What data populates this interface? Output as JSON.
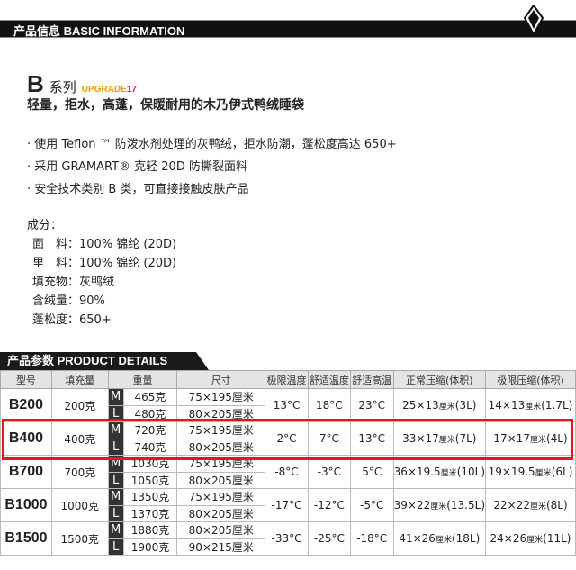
{
  "header": {
    "title": "产品信息  BASIC INFORMATION",
    "logo": "diamond-logo"
  },
  "series": {
    "letter": "B",
    "name": "系列",
    "upgrade": "UPGRADE",
    "upgrade_num": "17",
    "subtitle": "轻量，拒水，高蓬，保暖耐用的木乃伊式鸭绒睡袋"
  },
  "bullets": [
    "·  使用 Teflon ™ 防泼水剂处理的灰鸭绒，拒水防潮，蓬松度高达 650+",
    "·  采用 GRAMART® 克轻 20D 防撕裂面料",
    "·  安全技术类别 B 类，可直接接触皮肤产品"
  ],
  "composition": {
    "title": "成分：",
    "items": [
      "面　料：100% 锦纶 (20D)",
      "里　料：100% 锦纶 (20D)",
      "填充物：灰鸭绒",
      "含绒量：90%",
      "蓬松度：650+"
    ]
  },
  "details": {
    "title": "产品参数  PRODUCT DETAILS",
    "headers": [
      "型号",
      "填充量",
      "重量",
      "尺寸",
      "极限温度",
      "舒适温度",
      "舒适高温",
      "正常压缩(体积)",
      "极限压缩(体积)"
    ],
    "rows": [
      {
        "model": "B200",
        "fill": "200克",
        "variants": [
          {
            "size": "M",
            "weight": "465克",
            "dims": "75×195厘米"
          },
          {
            "size": "L",
            "weight": "480克",
            "dims": "80×205厘米"
          }
        ],
        "extreme": "13°C",
        "comfort": "18°C",
        "high": "23°C",
        "normal": "25×13",
        "normal_unit": "厘米",
        "normal_vol": "(3L)",
        "ext": "14×13",
        "ext_unit": "厘米",
        "ext_vol": "(1.7L)"
      },
      {
        "model": "B400",
        "fill": "400克",
        "variants": [
          {
            "size": "M",
            "weight": "720克",
            "dims": "75×195厘米"
          },
          {
            "size": "L",
            "weight": "740克",
            "dims": "80×205厘米"
          }
        ],
        "extreme": "2°C",
        "comfort": "7°C",
        "high": "13°C",
        "normal": "33×17",
        "normal_unit": "厘米",
        "normal_vol": "(7L)",
        "ext": "17×17",
        "ext_unit": "厘米",
        "ext_vol": "(4L)"
      },
      {
        "model": "B700",
        "fill": "700克",
        "variants": [
          {
            "size": "M",
            "weight": "1030克",
            "dims": "75×195厘米"
          },
          {
            "size": "L",
            "weight": "1050克",
            "dims": "80×205厘米"
          }
        ],
        "extreme": "-8°C",
        "comfort": "-3°C",
        "high": "5°C",
        "normal": "36×19.5",
        "normal_unit": "厘米",
        "normal_vol": "(10L)",
        "ext": "19×19.5",
        "ext_unit": "厘米",
        "ext_vol": "(6L)"
      },
      {
        "model": "B1000",
        "fill": "1000克",
        "variants": [
          {
            "size": "M",
            "weight": "1350克",
            "dims": "75×195厘米"
          },
          {
            "size": "L",
            "weight": "1370克",
            "dims": "80×205厘米"
          }
        ],
        "extreme": "-17°C",
        "comfort": "-12°C",
        "high": "-5°C",
        "normal": "39×22",
        "normal_unit": "厘米",
        "normal_vol": "(13.5L)",
        "ext": "22×22",
        "ext_unit": "厘米",
        "ext_vol": "(8L)"
      },
      {
        "model": "B1500",
        "fill": "1500克",
        "variants": [
          {
            "size": "M",
            "weight": "1880克",
            "dims": "80×205厘米"
          },
          {
            "size": "L",
            "weight": "1900克",
            "dims": "90×215厘米"
          }
        ],
        "extreme": "-33°C",
        "comfort": "-25°C",
        "high": "-18°C",
        "normal": "41×26",
        "normal_unit": "厘米",
        "normal_vol": "(18L)",
        "ext": "24×26",
        "ext_unit": "厘米",
        "ext_vol": "(11L)"
      }
    ],
    "highlight_color": "#e8141b"
  }
}
